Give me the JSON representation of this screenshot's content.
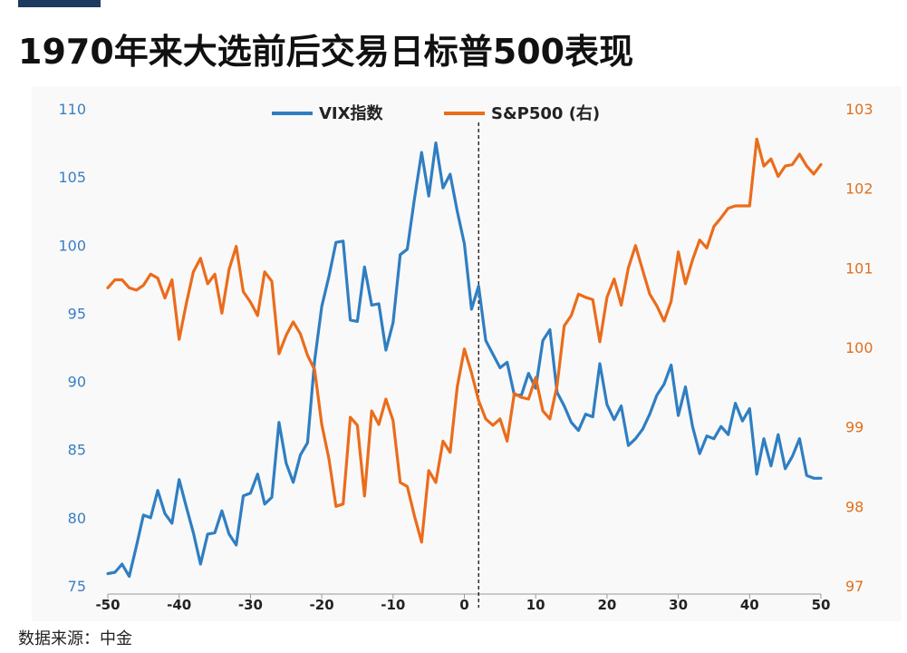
{
  "title": "1970年来大选前后交易日标普500表现",
  "source": "数据来源：中金",
  "chart_data": {
    "type": "line",
    "title": "1970年来大选前后交易日标普500表现",
    "x_ticks": [
      "-50",
      "-40",
      "-30",
      "-20",
      "-10",
      "0",
      "10",
      "20",
      "30",
      "40",
      "50"
    ],
    "y_left_ticks": [
      "75",
      "80",
      "85",
      "90",
      "95",
      "100",
      "105",
      "110"
    ],
    "y_right_ticks": [
      "97",
      "98",
      "99",
      "100",
      "101",
      "102",
      "103"
    ],
    "xlim": [
      -50,
      50
    ],
    "y_left_lim": [
      75,
      110
    ],
    "y_right_lim": [
      97,
      103
    ],
    "vline_x": 2,
    "legend": {
      "position": "top-center"
    },
    "colors": {
      "vix": "#2f7ec2",
      "sp500": "#eb6c1b",
      "vline": "#111111"
    },
    "series": [
      {
        "name": "VIX指数",
        "axis": "left",
        "x": [
          -50,
          -49,
          -48,
          -47,
          -46,
          -45,
          -44,
          -43,
          -42,
          -41,
          -40,
          -39,
          -38,
          -37,
          -36,
          -35,
          -34,
          -33,
          -32,
          -31,
          -30,
          -29,
          -28,
          -27,
          -26,
          -25,
          -24,
          -23,
          -22,
          -21,
          -20,
          -19,
          -18,
          -17,
          -16,
          -15,
          -14,
          -13,
          -12,
          -11,
          -10,
          -9,
          -8,
          -7,
          -6,
          -5,
          -4,
          -3,
          -2,
          -1,
          0,
          1,
          2,
          3,
          4,
          5,
          6,
          7,
          8,
          9,
          10,
          11,
          12,
          13,
          14,
          15,
          16,
          17,
          18,
          19,
          20,
          21,
          22,
          23,
          24,
          25,
          26,
          27,
          28,
          29,
          30,
          31,
          32,
          33,
          34,
          35,
          36,
          37,
          38,
          39,
          40,
          41,
          42,
          43,
          44,
          45,
          46,
          47,
          48,
          49,
          50
        ],
        "values": [
          75.9,
          76.0,
          76.6,
          75.7,
          77.9,
          80.2,
          80.0,
          82.0,
          80.3,
          79.6,
          82.8,
          80.8,
          78.9,
          76.6,
          78.8,
          78.9,
          80.5,
          78.8,
          78.0,
          81.6,
          81.8,
          83.2,
          81.0,
          81.5,
          87.0,
          84.0,
          82.6,
          84.6,
          85.5,
          91.5,
          95.5,
          97.7,
          100.2,
          100.3,
          94.5,
          94.4,
          98.4,
          95.6,
          95.7,
          92.3,
          94.3,
          99.3,
          99.7,
          103.4,
          106.8,
          103.6,
          107.5,
          104.2,
          105.2,
          102.5,
          100.1,
          95.3,
          97.0,
          93.0,
          92.0,
          91.0,
          91.4,
          89.0,
          89.0,
          90.6,
          89.5,
          93.0,
          93.8,
          89.2,
          88.2,
          87.0,
          86.4,
          87.6,
          87.4,
          91.3,
          88.3,
          87.2,
          88.2,
          85.3,
          85.8,
          86.5,
          87.6,
          89.0,
          89.8,
          91.2,
          87.5,
          89.6,
          86.7,
          84.7,
          86.0,
          85.8,
          86.7,
          86.1,
          88.4,
          87.1,
          88.0,
          83.2,
          85.8,
          83.8,
          86.1,
          83.6,
          84.5,
          85.8,
          83.1,
          82.9,
          82.9
        ]
      },
      {
        "name": "S&P500 (右)",
        "axis": "right",
        "x": [
          -50,
          -49,
          -48,
          -47,
          -46,
          -45,
          -44,
          -43,
          -42,
          -41,
          -40,
          -39,
          -38,
          -37,
          -36,
          -35,
          -34,
          -33,
          -32,
          -31,
          -30,
          -29,
          -28,
          -27,
          -26,
          -25,
          -24,
          -23,
          -22,
          -21,
          -20,
          -19,
          -18,
          -17,
          -16,
          -15,
          -14,
          -13,
          -12,
          -11,
          -10,
          -9,
          -8,
          -7,
          -6,
          -5,
          -4,
          -3,
          -2,
          -1,
          0,
          1,
          2,
          3,
          4,
          5,
          6,
          7,
          8,
          9,
          10,
          11,
          12,
          13,
          14,
          15,
          16,
          17,
          18,
          19,
          20,
          21,
          22,
          23,
          24,
          25,
          26,
          27,
          28,
          29,
          30,
          31,
          32,
          33,
          34,
          35,
          36,
          37,
          38,
          39,
          40,
          41,
          42,
          43,
          44,
          45,
          46,
          47,
          48,
          49,
          50
        ],
        "values": [
          100.75,
          100.85,
          100.85,
          100.75,
          100.72,
          100.78,
          100.92,
          100.87,
          100.62,
          100.85,
          100.1,
          100.55,
          100.95,
          101.12,
          100.8,
          100.92,
          100.43,
          100.98,
          101.27,
          100.7,
          100.57,
          100.4,
          100.95,
          100.83,
          99.92,
          100.15,
          100.32,
          100.17,
          99.9,
          99.72,
          99.03,
          98.6,
          98.0,
          98.03,
          99.12,
          99.02,
          98.13,
          99.2,
          99.03,
          99.35,
          99.08,
          98.3,
          98.25,
          97.88,
          97.55,
          98.45,
          98.3,
          98.82,
          98.68,
          99.5,
          99.98,
          99.68,
          99.33,
          99.1,
          99.02,
          99.1,
          98.82,
          99.42,
          99.37,
          99.35,
          99.62,
          99.2,
          99.1,
          99.52,
          100.27,
          100.4,
          100.67,
          100.63,
          100.6,
          100.07,
          100.63,
          100.86,
          100.53,
          101.0,
          101.28,
          100.97,
          100.67,
          100.52,
          100.33,
          100.58,
          101.2,
          100.8,
          101.1,
          101.35,
          101.25,
          101.52,
          101.63,
          101.75,
          101.78,
          101.78,
          101.78,
          102.62,
          102.28,
          102.37,
          102.15,
          102.28,
          102.3,
          102.43,
          102.28,
          102.18,
          102.3
        ]
      }
    ]
  }
}
